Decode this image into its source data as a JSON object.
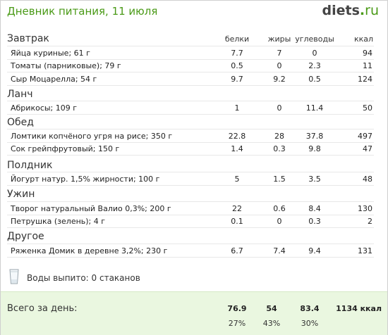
{
  "header": {
    "title": "Дневник питания, 11 июля",
    "logo_main": "diets",
    "logo_dot": ".",
    "logo_tld": "ru"
  },
  "columns": {
    "protein": "белки",
    "fat": "жиры",
    "carbs": "углеводы",
    "kcal": "ккал"
  },
  "sections": [
    {
      "title": "Завтрак",
      "items": [
        {
          "name": "Яйца куриные; 61 г",
          "protein": "7.7",
          "fat": "7",
          "carbs": "0",
          "kcal": "94"
        },
        {
          "name": "Томаты (парниковые); 79 г",
          "protein": "0.5",
          "fat": "0",
          "carbs": "2.3",
          "kcal": "11"
        },
        {
          "name": "Сыр Моцарелла; 54 г",
          "protein": "9.7",
          "fat": "9.2",
          "carbs": "0.5",
          "kcal": "124"
        }
      ]
    },
    {
      "title": "Ланч",
      "items": [
        {
          "name": "Абрикосы; 109 г",
          "protein": "1",
          "fat": "0",
          "carbs": "11.4",
          "kcal": "50"
        }
      ]
    },
    {
      "title": "Обед",
      "items": [
        {
          "name": "Ломтики копчёного угря на рисе; 350 г",
          "protein": "22.8",
          "fat": "28",
          "carbs": "37.8",
          "kcal": "497"
        },
        {
          "name": "Сок грейпфрутовый; 150 г",
          "protein": "1.4",
          "fat": "0.3",
          "carbs": "9.8",
          "kcal": "47"
        }
      ]
    },
    {
      "title": "Полдник",
      "items": [
        {
          "name": "Йогурт натур. 1,5% жирности; 100 г",
          "protein": "5",
          "fat": "1.5",
          "carbs": "3.5",
          "kcal": "48"
        }
      ]
    },
    {
      "title": "Ужин",
      "items": [
        {
          "name": "Творог натуральный Валио 0,3%; 200 г",
          "protein": "22",
          "fat": "0.6",
          "carbs": "8.4",
          "kcal": "130"
        },
        {
          "name": "Петрушка (зелень); 4 г",
          "protein": "0.1",
          "fat": "0",
          "carbs": "0.3",
          "kcal": "2"
        }
      ]
    },
    {
      "title": "Другое",
      "items": [
        {
          "name": "Ряженка Домик в деревне 3,2%; 230 г",
          "protein": "6.7",
          "fat": "7.4",
          "carbs": "9.4",
          "kcal": "131"
        }
      ]
    }
  ],
  "water": {
    "text": "Воды выпито: 0 стаканов"
  },
  "totals": {
    "label": "Всего за день:",
    "protein": "76.9",
    "fat": "54",
    "carbs": "83.4",
    "kcal": "1134 ккал",
    "protein_pct": "27%",
    "fat_pct": "43%",
    "carbs_pct": "30%"
  }
}
